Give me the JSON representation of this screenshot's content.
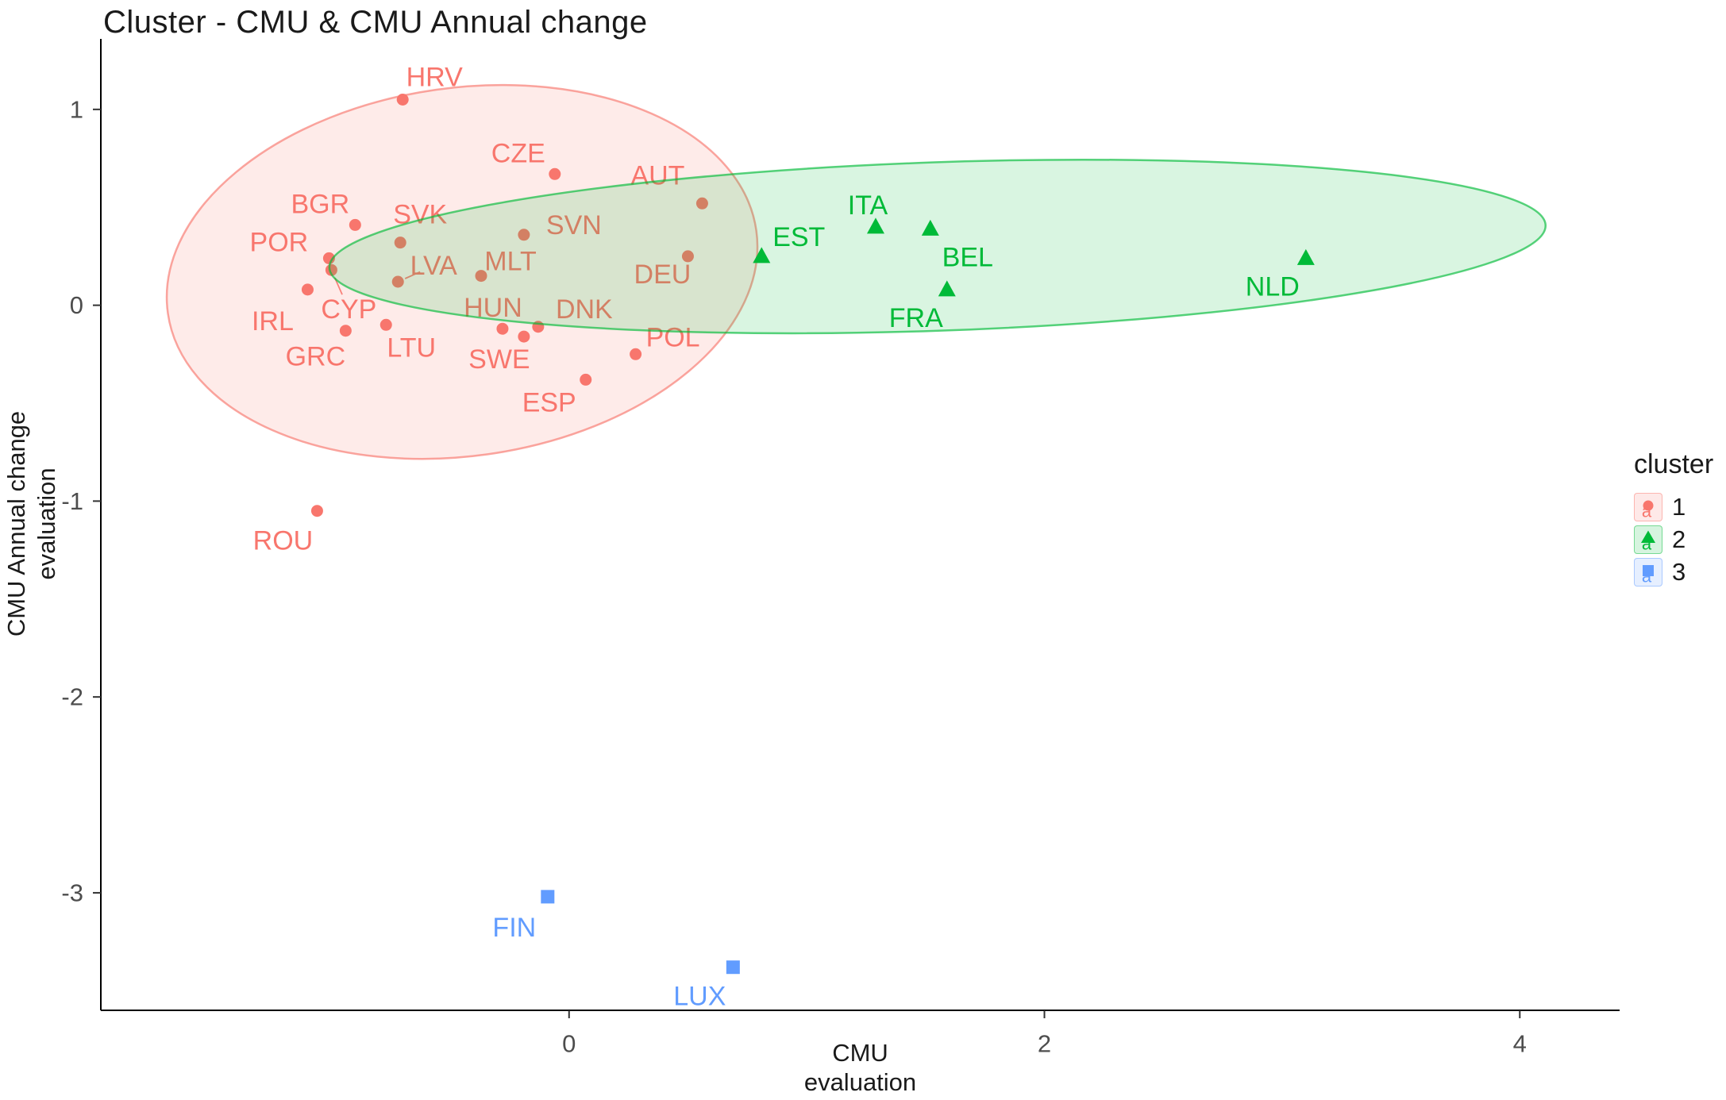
{
  "chart": {
    "title": "Cluster - CMU & CMU Annual change",
    "x_axis": {
      "title_line1": "CMU",
      "title_line2": "evaluation"
    },
    "y_axis": {
      "title_line1": "CMU Annual change",
      "title_line2": "evaluation"
    }
  },
  "legend": {
    "title": "cluster",
    "entries": [
      {
        "label": "1",
        "shape": "circle",
        "color": "#F8766D"
      },
      {
        "label": "2",
        "shape": "triangle",
        "color": "#00BA38"
      },
      {
        "label": "3",
        "shape": "square",
        "color": "#619CFF"
      }
    ]
  },
  "chart_data": {
    "type": "scatter",
    "title": "Cluster - CMU & CMU Annual change",
    "xlabel": "CMU evaluation",
    "ylabel": "CMU Annual change evaluation",
    "xlim": [
      -1.97,
      4.42
    ],
    "ylim": [
      -3.6,
      1.36
    ],
    "x_ticks": [
      0,
      2,
      4
    ],
    "y_ticks": [
      1,
      0,
      -1,
      -2,
      -3
    ],
    "grid": false,
    "legend_title": "cluster",
    "legend_position": "right",
    "series": [
      {
        "name": "1",
        "shape": "circle",
        "color": "#F8766D",
        "points": [
          {
            "label": "HRV",
            "x": -0.7,
            "y": 1.05,
            "dx": 40,
            "dy": -28
          },
          {
            "label": "CZE",
            "x": -0.06,
            "y": 0.67,
            "dx": -46,
            "dy": -26
          },
          {
            "label": "AUT",
            "x": 0.56,
            "y": 0.52,
            "dx": -56,
            "dy": -35
          },
          {
            "label": "BGR",
            "x": -0.9,
            "y": 0.41,
            "dx": -44,
            "dy": -26
          },
          {
            "label": "SVK",
            "x": -0.71,
            "y": 0.32,
            "dx": 25,
            "dy": -35
          },
          {
            "label": "SVN",
            "x": -0.19,
            "y": 0.36,
            "dx": 63,
            "dy": -12
          },
          {
            "label": "POR",
            "x": -1.01,
            "y": 0.24,
            "dx": -63,
            "dy": -20
          },
          {
            "label": "LVA",
            "x": -0.72,
            "y": 0.12,
            "dx": 45,
            "dy": -20,
            "leader": true
          },
          {
            "label": "MLT",
            "x": -0.37,
            "y": 0.15,
            "dx": 37,
            "dy": -18
          },
          {
            "label": "DEU",
            "x": 0.5,
            "y": 0.25,
            "dx": -32,
            "dy": 23
          },
          {
            "label": "IRL",
            "x": -1.1,
            "y": 0.08,
            "dx": -44,
            "dy": 40
          },
          {
            "label": "CYP",
            "x": -1.0,
            "y": 0.18,
            "dx": 22,
            "dy": 50,
            "leader": true
          },
          {
            "label": "HUN",
            "x": -0.28,
            "y": -0.12,
            "dx": -12,
            "dy": -26
          },
          {
            "label": "DNK",
            "x": -0.13,
            "y": -0.11,
            "dx": 58,
            "dy": -22
          },
          {
            "label": "GRC",
            "x": -0.94,
            "y": -0.13,
            "dx": -38,
            "dy": 33
          },
          {
            "label": "LTU",
            "x": -0.77,
            "y": -0.1,
            "dx": 32,
            "dy": 29
          },
          {
            "label": "SWE",
            "x": -0.19,
            "y": -0.16,
            "dx": -31,
            "dy": 29
          },
          {
            "label": "POL",
            "x": 0.28,
            "y": -0.25,
            "dx": 47,
            "dy": -21
          },
          {
            "label": "ESP",
            "x": 0.07,
            "y": -0.38,
            "dx": -46,
            "dy": 29
          },
          {
            "label": "ROU",
            "x": -1.06,
            "y": -1.05,
            "dx": -43,
            "dy": 38
          }
        ]
      },
      {
        "name": "2",
        "shape": "triangle",
        "color": "#00BA38",
        "points": [
          {
            "label": "EST",
            "x": 0.81,
            "y": 0.25,
            "dx": 47,
            "dy": -24
          },
          {
            "label": "ITA",
            "x": 1.29,
            "y": 0.4,
            "dx": -10,
            "dy": -27
          },
          {
            "label": "BEL",
            "x": 1.52,
            "y": 0.39,
            "dx": 47,
            "dy": 36
          },
          {
            "label": "FRA",
            "x": 1.59,
            "y": 0.08,
            "dx": -39,
            "dy": 36
          },
          {
            "label": "NLD",
            "x": 3.1,
            "y": 0.24,
            "dx": -42,
            "dy": 36
          }
        ]
      },
      {
        "name": "3",
        "shape": "square",
        "color": "#619CFF",
        "points": [
          {
            "label": "FIN",
            "x": -0.09,
            "y": -3.02,
            "dx": -42,
            "dy": 39
          },
          {
            "label": "LUX",
            "x": 0.69,
            "y": -3.38,
            "dx": -42,
            "dy": 37
          }
        ]
      }
    ],
    "ellipses": [
      {
        "cluster": "1",
        "color": "#F8766D",
        "cx": -0.45,
        "cy": 0.17,
        "rx": 1.25,
        "ry": 0.94,
        "rotation": -8
      },
      {
        "cluster": "2",
        "color": "#00BA38",
        "cx": 1.55,
        "cy": 0.3,
        "rx": 2.56,
        "ry": 0.43,
        "rotation": -2
      }
    ]
  }
}
